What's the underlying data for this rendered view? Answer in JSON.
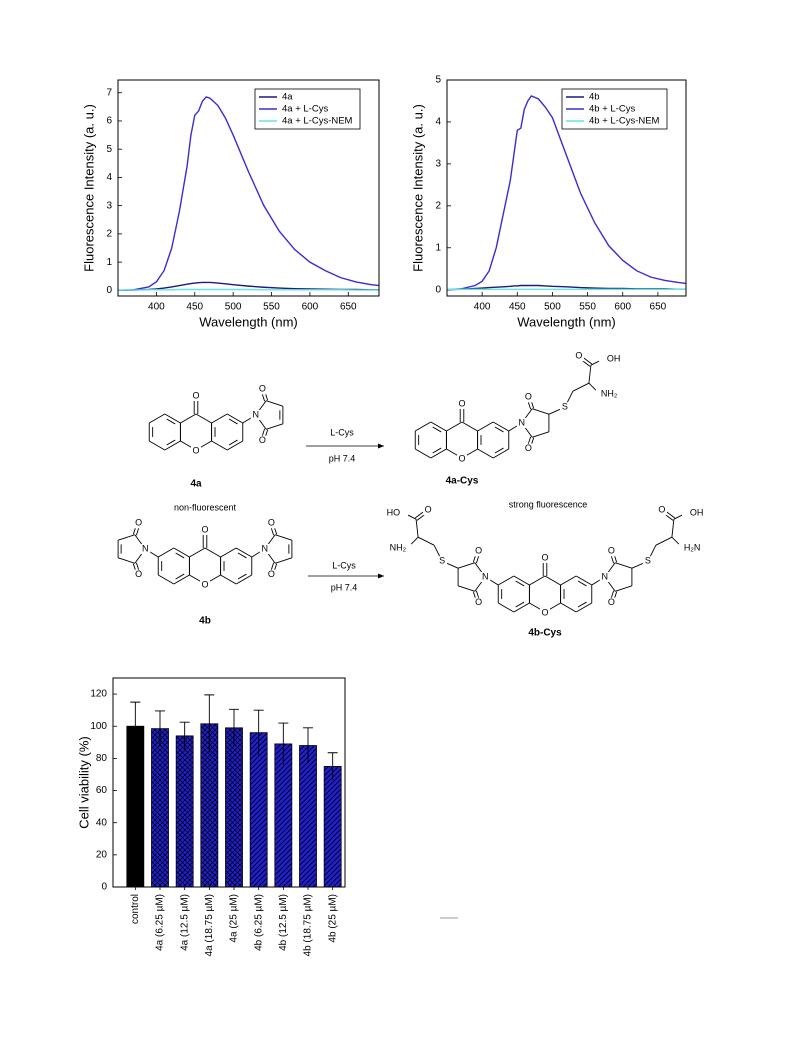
{
  "chart_data": [
    {
      "type": "line",
      "x": [
        350,
        370,
        390,
        400,
        410,
        420,
        430,
        440,
        445,
        450,
        455,
        460,
        465,
        470,
        480,
        490,
        500,
        520,
        540,
        560,
        580,
        600,
        620,
        640,
        660,
        680,
        690
      ],
      "xlim": [
        350,
        690
      ],
      "ylim": [
        -0.2,
        7.45
      ],
      "xticks": [
        400,
        450,
        500,
        550,
        600,
        650
      ],
      "yticks": [
        0,
        1,
        2,
        3,
        4,
        5,
        6,
        7
      ],
      "x_label": "Wavelength (nm)",
      "y_label": "Fluorescence Intensity (a. u.)",
      "legend": "upper right",
      "series": [
        {
          "name": "4a",
          "color": "#1c1c7a",
          "values": [
            0,
            0.01,
            0.03,
            0.05,
            0.08,
            0.12,
            0.17,
            0.22,
            0.24,
            0.26,
            0.27,
            0.28,
            0.28,
            0.28,
            0.26,
            0.23,
            0.2,
            0.15,
            0.11,
            0.08,
            0.06,
            0.05,
            0.04,
            0.03,
            0.03,
            0.02,
            0.02
          ]
        },
        {
          "name": "4a + L-Cys",
          "color": "#3a2bd6",
          "values": [
            0,
            0.02,
            0.12,
            0.3,
            0.7,
            1.5,
            2.8,
            4.4,
            5.5,
            6.2,
            6.35,
            6.7,
            6.85,
            6.8,
            6.55,
            6.1,
            5.5,
            4.2,
            3.0,
            2.1,
            1.45,
            1.0,
            0.7,
            0.45,
            0.3,
            0.2,
            0.17
          ]
        },
        {
          "name": "4a + L-Cys-NEM",
          "color": "#66e3e3",
          "values": [
            0.01,
            0.01,
            0.02,
            0.02,
            0.02,
            0.02,
            0.03,
            0.03,
            0.03,
            0.03,
            0.03,
            0.03,
            0.03,
            0.03,
            0.03,
            0.03,
            0.03,
            0.03,
            0.02,
            0.02,
            0.02,
            0.02,
            0.02,
            0.02,
            0.01,
            0.01,
            0.01
          ]
        }
      ]
    },
    {
      "type": "line",
      "x": [
        350,
        370,
        390,
        400,
        410,
        420,
        430,
        440,
        445,
        450,
        455,
        460,
        465,
        470,
        480,
        490,
        500,
        520,
        540,
        560,
        580,
        600,
        620,
        640,
        660,
        680,
        690
      ],
      "xlim": [
        350,
        690
      ],
      "ylim": [
        -0.15,
        5
      ],
      "xticks": [
        400,
        450,
        500,
        550,
        600,
        650
      ],
      "yticks": [
        0,
        1,
        2,
        3,
        4,
        5
      ],
      "x_label": "Wavelength (nm)",
      "y_label": "Fluorescence Intensity (a. u.)",
      "legend": "upper right",
      "series": [
        {
          "name": "4b",
          "color": "#1c1c7a",
          "values": [
            0,
            0.01,
            0.03,
            0.04,
            0.05,
            0.06,
            0.07,
            0.08,
            0.09,
            0.09,
            0.1,
            0.1,
            0.1,
            0.1,
            0.1,
            0.09,
            0.08,
            0.07,
            0.05,
            0.04,
            0.03,
            0.03,
            0.02,
            0.02,
            0.02,
            0.01,
            0.01
          ]
        },
        {
          "name": "4b + L-Cys",
          "color": "#3a2bd6",
          "values": [
            0,
            0.02,
            0.1,
            0.2,
            0.45,
            1.0,
            1.8,
            2.6,
            3.2,
            3.8,
            3.85,
            4.3,
            4.5,
            4.62,
            4.55,
            4.35,
            4.1,
            3.2,
            2.3,
            1.6,
            1.05,
            0.7,
            0.45,
            0.3,
            0.22,
            0.17,
            0.15
          ]
        },
        {
          "name": "4b + L-Cys-NEM",
          "color": "#66e3e3",
          "values": [
            0.01,
            0.01,
            0.01,
            0.01,
            0.01,
            0.01,
            0.01,
            0.01,
            0.01,
            0.01,
            0.01,
            0.01,
            0.01,
            0.01,
            0.01,
            0.01,
            0.01,
            0.01,
            0.01,
            0.01,
            0.01,
            0.01,
            0.01,
            0.01,
            0.01,
            0.01,
            0.01
          ]
        }
      ]
    },
    {
      "type": "bar",
      "categories": [
        "control",
        "4a (6.25 µM)",
        "4a (12.5 µM)",
        "4a (18.75 µM)",
        "4a (25 µM)",
        "4b (6.25 µM)",
        "4b (12.5 µM)",
        "4b (18.75 µM)",
        "4b (25 µM)"
      ],
      "values": [
        100,
        98.5,
        94,
        101.5,
        99,
        96,
        89,
        88,
        75
      ],
      "errors": [
        15,
        11,
        8.5,
        18,
        11.5,
        14,
        13,
        11,
        8.5
      ],
      "colors": [
        "#000000",
        "#2020d0",
        "#2020d0",
        "#2020d0",
        "#2020d0",
        "#2020d0",
        "#2020d0",
        "#2020d0",
        "#2020d0"
      ],
      "hatches": [
        "none",
        "cross",
        "cross",
        "cross",
        "cross",
        "diag",
        "diag",
        "diag",
        "diag"
      ],
      "ylim": [
        0,
        130
      ],
      "yticks": [
        0,
        20,
        40,
        60,
        80,
        100,
        120
      ],
      "y_label": "Cell viability (%)"
    }
  ],
  "scheme": {
    "reagent_1": "L-Cys",
    "condition_1": "pH 7.4",
    "reagent_2": "L-Cys",
    "condition_2": "pH 7.4",
    "label_4a": "4a",
    "label_4a_cys": "4a-Cys",
    "label_4b": "4b",
    "label_4b_cys": "4b-Cys",
    "note_left": "non-fluorescent",
    "note_right": "strong fluorescence",
    "atoms": {
      "O": "O",
      "N": "N",
      "S": "S",
      "OH": "OH",
      "HO": "HO",
      "NH2": "NH₂",
      "H2N": "H₂N"
    }
  }
}
